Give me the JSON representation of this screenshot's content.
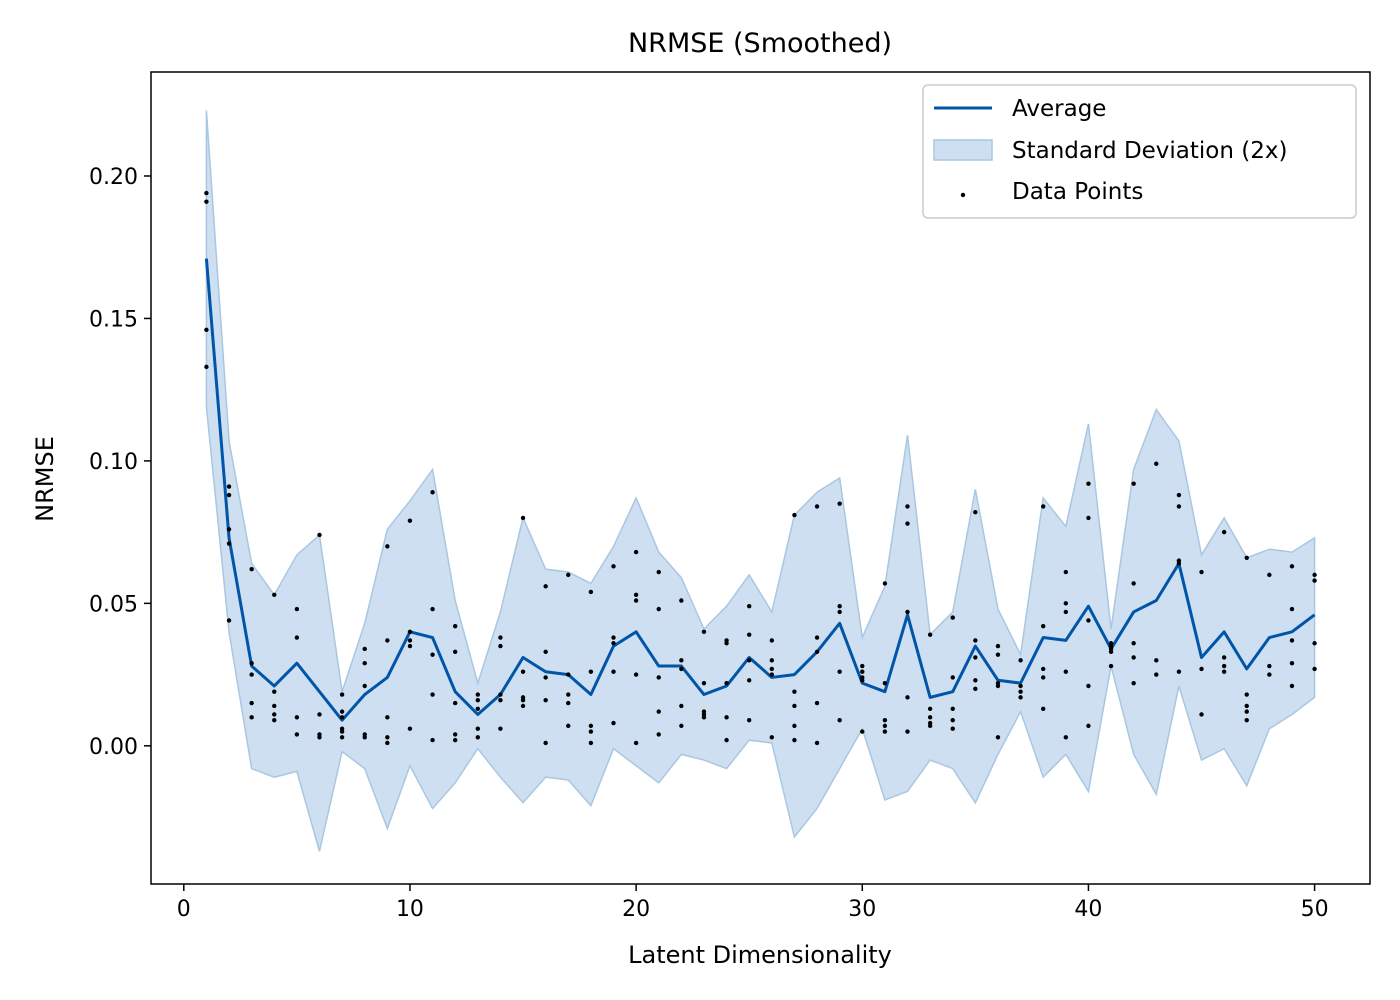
{
  "chart_data": {
    "type": "line",
    "title": "NRMSE (Smoothed)",
    "xlabel": "Latent Dimensionality",
    "ylabel": "NRMSE",
    "xlim": [
      -1.45,
      52.45
    ],
    "ylim": [
      -0.0485,
      0.2365
    ],
    "xticks": [
      0,
      10,
      20,
      30,
      40,
      50
    ],
    "xtick_labels": [
      "0",
      "10",
      "20",
      "30",
      "40",
      "50"
    ],
    "yticks": [
      0.0,
      0.05,
      0.1,
      0.15,
      0.2
    ],
    "ytick_labels": [
      "0.00",
      "0.05",
      "0.10",
      "0.15",
      "0.20"
    ],
    "grid": false,
    "legend_position": "top-right",
    "colors": {
      "average": "#0055a8",
      "band_fill": "#cddff0",
      "band_edge": "#a9c7e2",
      "points": "#000000"
    },
    "legend": [
      {
        "label": "Average",
        "kind": "line"
      },
      {
        "label": "Standard Deviation (2x)",
        "kind": "band"
      },
      {
        "label": "Data Points",
        "kind": "point"
      }
    ],
    "x": [
      1,
      2,
      3,
      4,
      5,
      6,
      7,
      8,
      9,
      10,
      11,
      12,
      13,
      14,
      15,
      16,
      17,
      18,
      19,
      20,
      21,
      22,
      23,
      24,
      25,
      26,
      27,
      28,
      29,
      30,
      31,
      32,
      33,
      34,
      35,
      36,
      37,
      38,
      39,
      40,
      41,
      42,
      43,
      44,
      45,
      46,
      47,
      48,
      49,
      50
    ],
    "series": [
      {
        "name": "Average",
        "values": [
          0.171,
          0.073,
          0.028,
          0.021,
          0.029,
          0.019,
          0.009,
          0.018,
          0.024,
          0.04,
          0.038,
          0.019,
          0.011,
          0.018,
          0.031,
          0.026,
          0.025,
          0.018,
          0.035,
          0.04,
          0.028,
          0.028,
          0.018,
          0.021,
          0.031,
          0.024,
          0.025,
          0.033,
          0.043,
          0.022,
          0.019,
          0.046,
          0.017,
          0.019,
          0.035,
          0.023,
          0.022,
          0.038,
          0.037,
          0.049,
          0.034,
          0.047,
          0.051,
          0.064,
          0.031,
          0.04,
          0.027,
          0.038,
          0.04,
          0.046
        ]
      }
    ],
    "band_upper": [
      0.223,
      0.107,
      0.064,
      0.053,
      0.067,
      0.074,
      0.019,
      0.043,
      0.076,
      0.086,
      0.097,
      0.051,
      0.022,
      0.047,
      0.08,
      0.062,
      0.061,
      0.057,
      0.07,
      0.087,
      0.068,
      0.059,
      0.041,
      0.049,
      0.06,
      0.047,
      0.081,
      0.089,
      0.094,
      0.038,
      0.056,
      0.109,
      0.039,
      0.047,
      0.09,
      0.048,
      0.032,
      0.087,
      0.077,
      0.113,
      0.041,
      0.097,
      0.118,
      0.107,
      0.067,
      0.08,
      0.066,
      0.069,
      0.068,
      0.073
    ],
    "band_lower": [
      0.119,
      0.04,
      -0.008,
      -0.011,
      -0.009,
      -0.037,
      -0.002,
      -0.008,
      -0.029,
      -0.007,
      -0.022,
      -0.013,
      -0.001,
      -0.011,
      -0.02,
      -0.011,
      -0.012,
      -0.021,
      -0.001,
      -0.007,
      -0.013,
      -0.003,
      -0.005,
      -0.008,
      0.002,
      0.001,
      -0.032,
      -0.022,
      -0.008,
      0.006,
      -0.019,
      -0.016,
      -0.005,
      -0.008,
      -0.02,
      -0.003,
      0.012,
      -0.011,
      -0.003,
      -0.016,
      0.028,
      -0.003,
      -0.017,
      0.021,
      -0.005,
      -0.001,
      -0.014,
      0.006,
      0.011,
      0.017
    ],
    "points": [
      [
        1,
        0.194
      ],
      [
        1,
        0.191
      ],
      [
        1,
        0.146
      ],
      [
        1,
        0.133
      ],
      [
        2,
        0.091
      ],
      [
        2,
        0.088
      ],
      [
        2,
        0.076
      ],
      [
        2,
        0.071
      ],
      [
        2,
        0.044
      ],
      [
        3,
        0.062
      ],
      [
        3,
        0.029
      ],
      [
        3,
        0.025
      ],
      [
        3,
        0.015
      ],
      [
        3,
        0.01
      ],
      [
        4,
        0.053
      ],
      [
        4,
        0.019
      ],
      [
        4,
        0.014
      ],
      [
        4,
        0.011
      ],
      [
        4,
        0.009
      ],
      [
        5,
        0.048
      ],
      [
        5,
        0.038
      ],
      [
        5,
        0.01
      ],
      [
        5,
        0.004
      ],
      [
        6,
        0.074
      ],
      [
        6,
        0.011
      ],
      [
        6,
        0.004
      ],
      [
        6,
        0.003
      ],
      [
        7,
        0.018
      ],
      [
        7,
        0.012
      ],
      [
        7,
        0.01
      ],
      [
        7,
        0.006
      ],
      [
        7,
        0.005
      ],
      [
        7,
        0.003
      ],
      [
        8,
        0.034
      ],
      [
        8,
        0.029
      ],
      [
        8,
        0.021
      ],
      [
        8,
        0.004
      ],
      [
        8,
        0.003
      ],
      [
        9,
        0.07
      ],
      [
        9,
        0.037
      ],
      [
        9,
        0.01
      ],
      [
        9,
        0.003
      ],
      [
        9,
        0.001
      ],
      [
        10,
        0.079
      ],
      [
        10,
        0.04
      ],
      [
        10,
        0.037
      ],
      [
        10,
        0.035
      ],
      [
        10,
        0.006
      ],
      [
        11,
        0.089
      ],
      [
        11,
        0.048
      ],
      [
        11,
        0.032
      ],
      [
        11,
        0.018
      ],
      [
        11,
        0.002
      ],
      [
        12,
        0.042
      ],
      [
        12,
        0.033
      ],
      [
        12,
        0.015
      ],
      [
        12,
        0.004
      ],
      [
        12,
        0.002
      ],
      [
        13,
        0.018
      ],
      [
        13,
        0.016
      ],
      [
        13,
        0.013
      ],
      [
        13,
        0.006
      ],
      [
        13,
        0.003
      ],
      [
        14,
        0.038
      ],
      [
        14,
        0.035
      ],
      [
        14,
        0.018
      ],
      [
        14,
        0.016
      ],
      [
        14,
        0.006
      ],
      [
        15,
        0.08
      ],
      [
        15,
        0.026
      ],
      [
        15,
        0.017
      ],
      [
        15,
        0.016
      ],
      [
        15,
        0.014
      ],
      [
        16,
        0.056
      ],
      [
        16,
        0.033
      ],
      [
        16,
        0.024
      ],
      [
        16,
        0.016
      ],
      [
        16,
        0.001
      ],
      [
        17,
        0.06
      ],
      [
        17,
        0.025
      ],
      [
        17,
        0.018
      ],
      [
        17,
        0.015
      ],
      [
        17,
        0.007
      ],
      [
        18,
        0.054
      ],
      [
        18,
        0.026
      ],
      [
        18,
        0.007
      ],
      [
        18,
        0.005
      ],
      [
        18,
        0.001
      ],
      [
        19,
        0.063
      ],
      [
        19,
        0.038
      ],
      [
        19,
        0.036
      ],
      [
        19,
        0.026
      ],
      [
        19,
        0.008
      ],
      [
        20,
        0.068
      ],
      [
        20,
        0.053
      ],
      [
        20,
        0.051
      ],
      [
        20,
        0.025
      ],
      [
        20,
        0.001
      ],
      [
        21,
        0.061
      ],
      [
        21,
        0.048
      ],
      [
        21,
        0.024
      ],
      [
        21,
        0.012
      ],
      [
        21,
        0.004
      ],
      [
        22,
        0.051
      ],
      [
        22,
        0.03
      ],
      [
        22,
        0.027
      ],
      [
        22,
        0.014
      ],
      [
        22,
        0.007
      ],
      [
        23,
        0.04
      ],
      [
        23,
        0.022
      ],
      [
        23,
        0.012
      ],
      [
        23,
        0.011
      ],
      [
        23,
        0.01
      ],
      [
        24,
        0.037
      ],
      [
        24,
        0.036
      ],
      [
        24,
        0.022
      ],
      [
        24,
        0.01
      ],
      [
        24,
        0.002
      ],
      [
        25,
        0.049
      ],
      [
        25,
        0.039
      ],
      [
        25,
        0.03
      ],
      [
        25,
        0.023
      ],
      [
        25,
        0.009
      ],
      [
        26,
        0.037
      ],
      [
        26,
        0.03
      ],
      [
        26,
        0.027
      ],
      [
        26,
        0.025
      ],
      [
        26,
        0.003
      ],
      [
        27,
        0.081
      ],
      [
        27,
        0.019
      ],
      [
        27,
        0.014
      ],
      [
        27,
        0.007
      ],
      [
        27,
        0.002
      ],
      [
        28,
        0.084
      ],
      [
        28,
        0.038
      ],
      [
        28,
        0.033
      ],
      [
        28,
        0.015
      ],
      [
        28,
        0.001
      ],
      [
        29,
        0.085
      ],
      [
        29,
        0.049
      ],
      [
        29,
        0.047
      ],
      [
        29,
        0.026
      ],
      [
        29,
        0.009
      ],
      [
        30,
        0.028
      ],
      [
        30,
        0.026
      ],
      [
        30,
        0.024
      ],
      [
        30,
        0.023
      ],
      [
        30,
        0.005
      ],
      [
        31,
        0.057
      ],
      [
        31,
        0.022
      ],
      [
        31,
        0.009
      ],
      [
        31,
        0.007
      ],
      [
        31,
        0.005
      ],
      [
        32,
        0.084
      ],
      [
        32,
        0.078
      ],
      [
        32,
        0.047
      ],
      [
        32,
        0.017
      ],
      [
        32,
        0.005
      ],
      [
        33,
        0.039
      ],
      [
        33,
        0.013
      ],
      [
        33,
        0.01
      ],
      [
        33,
        0.008
      ],
      [
        33,
        0.007
      ],
      [
        34,
        0.045
      ],
      [
        34,
        0.024
      ],
      [
        34,
        0.013
      ],
      [
        34,
        0.009
      ],
      [
        34,
        0.006
      ],
      [
        35,
        0.082
      ],
      [
        35,
        0.037
      ],
      [
        35,
        0.031
      ],
      [
        35,
        0.023
      ],
      [
        35,
        0.02
      ],
      [
        36,
        0.035
      ],
      [
        36,
        0.032
      ],
      [
        36,
        0.022
      ],
      [
        36,
        0.021
      ],
      [
        36,
        0.003
      ],
      [
        37,
        0.03
      ],
      [
        37,
        0.021
      ],
      [
        37,
        0.019
      ],
      [
        37,
        0.017
      ],
      [
        38,
        0.084
      ],
      [
        38,
        0.042
      ],
      [
        38,
        0.027
      ],
      [
        38,
        0.024
      ],
      [
        38,
        0.013
      ],
      [
        39,
        0.061
      ],
      [
        39,
        0.05
      ],
      [
        39,
        0.047
      ],
      [
        39,
        0.026
      ],
      [
        39,
        0.003
      ],
      [
        40,
        0.092
      ],
      [
        40,
        0.08
      ],
      [
        40,
        0.044
      ],
      [
        40,
        0.021
      ],
      [
        40,
        0.007
      ],
      [
        41,
        0.036
      ],
      [
        41,
        0.035
      ],
      [
        41,
        0.034
      ],
      [
        41,
        0.033
      ],
      [
        41,
        0.028
      ],
      [
        42,
        0.092
      ],
      [
        42,
        0.057
      ],
      [
        42,
        0.036
      ],
      [
        42,
        0.031
      ],
      [
        42,
        0.022
      ],
      [
        43,
        0.099
      ],
      [
        43,
        0.03
      ],
      [
        43,
        0.025
      ],
      [
        44,
        0.088
      ],
      [
        44,
        0.084
      ],
      [
        44,
        0.065
      ],
      [
        44,
        0.064
      ],
      [
        44,
        0.026
      ],
      [
        45,
        0.061
      ],
      [
        45,
        0.027
      ],
      [
        45,
        0.011
      ],
      [
        46,
        0.075
      ],
      [
        46,
        0.031
      ],
      [
        46,
        0.028
      ],
      [
        46,
        0.026
      ],
      [
        47,
        0.066
      ],
      [
        47,
        0.018
      ],
      [
        47,
        0.014
      ],
      [
        47,
        0.012
      ],
      [
        47,
        0.009
      ],
      [
        48,
        0.06
      ],
      [
        48,
        0.028
      ],
      [
        48,
        0.025
      ],
      [
        49,
        0.063
      ],
      [
        49,
        0.048
      ],
      [
        49,
        0.037
      ],
      [
        49,
        0.029
      ],
      [
        49,
        0.021
      ],
      [
        50,
        0.06
      ],
      [
        50,
        0.058
      ],
      [
        50,
        0.036
      ],
      [
        50,
        0.027
      ]
    ]
  }
}
